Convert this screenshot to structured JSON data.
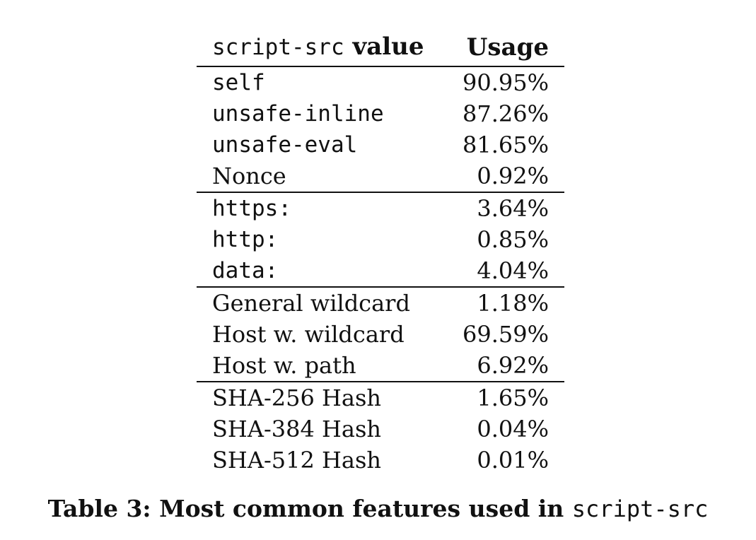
{
  "table": {
    "header": {
      "col1_code": "script-src",
      "col1_text": " value",
      "col2": "Usage"
    },
    "groups": [
      [
        {
          "value": "self",
          "usage": "90.95%",
          "style": "mono"
        },
        {
          "value": "unsafe-inline",
          "usage": "87.26%",
          "style": "mono"
        },
        {
          "value": "unsafe-eval",
          "usage": "81.65%",
          "style": "mono"
        },
        {
          "value": "Nonce",
          "usage": "0.92%",
          "style": "serif"
        }
      ],
      [
        {
          "value": "https:",
          "usage": "3.64%",
          "style": "mono"
        },
        {
          "value": "http:",
          "usage": "0.85%",
          "style": "mono"
        },
        {
          "value": "data:",
          "usage": "4.04%",
          "style": "mono"
        }
      ],
      [
        {
          "value": "General wildcard",
          "usage": "1.18%",
          "style": "serif"
        },
        {
          "value": "Host w. wildcard",
          "usage": "69.59%",
          "style": "serif"
        },
        {
          "value": "Host w. path",
          "usage": "6.92%",
          "style": "serif"
        }
      ],
      [
        {
          "value": "SHA-256 Hash",
          "usage": "1.65%",
          "style": "serif"
        },
        {
          "value": "SHA-384 Hash",
          "usage": "0.04%",
          "style": "serif"
        },
        {
          "value": "SHA-512 Hash",
          "usage": "0.01%",
          "style": "serif"
        }
      ]
    ]
  },
  "caption": {
    "label": "Table 3:",
    "text": " Most common features used in ",
    "code": "script-src"
  }
}
